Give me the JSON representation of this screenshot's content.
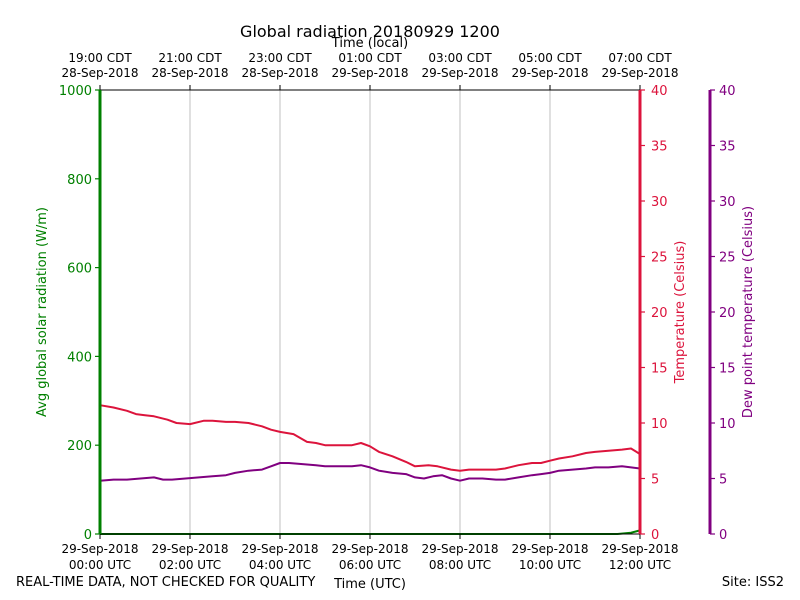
{
  "chart_data": {
    "type": "line",
    "title": "Global radiation 20180929 1200",
    "top_axis_label": "Time (local)",
    "xlabel": "Time (UTC)",
    "x_range_hours_utc": [
      0,
      12
    ],
    "x_ticks_utc": [
      {
        "hour": 0,
        "date": "29-Sep-2018",
        "time": "00:00 UTC"
      },
      {
        "hour": 2,
        "date": "29-Sep-2018",
        "time": "02:00 UTC"
      },
      {
        "hour": 4,
        "date": "29-Sep-2018",
        "time": "04:00 UTC"
      },
      {
        "hour": 6,
        "date": "29-Sep-2018",
        "time": "06:00 UTC"
      },
      {
        "hour": 8,
        "date": "29-Sep-2018",
        "time": "08:00 UTC"
      },
      {
        "hour": 10,
        "date": "29-Sep-2018",
        "time": "10:00 UTC"
      },
      {
        "hour": 12,
        "date": "29-Sep-2018",
        "time": "12:00 UTC"
      }
    ],
    "x_ticks_local": [
      {
        "hour": 0,
        "time": "19:00 CDT",
        "date": "28-Sep-2018"
      },
      {
        "hour": 2,
        "time": "21:00 CDT",
        "date": "28-Sep-2018"
      },
      {
        "hour": 4,
        "time": "23:00 CDT",
        "date": "28-Sep-2018"
      },
      {
        "hour": 6,
        "time": "01:00 CDT",
        "date": "29-Sep-2018"
      },
      {
        "hour": 8,
        "time": "03:00 CDT",
        "date": "29-Sep-2018"
      },
      {
        "hour": 10,
        "time": "05:00 CDT",
        "date": "29-Sep-2018"
      },
      {
        "hour": 12,
        "time": "07:00 CDT",
        "date": "29-Sep-2018"
      }
    ],
    "axes": {
      "radiation": {
        "label": "Avg global solar radiation (W/m)",
        "ylim": [
          0,
          1000
        ],
        "ticks": [
          0,
          200,
          400,
          600,
          800,
          1000
        ],
        "color": "#008000"
      },
      "temperature": {
        "label": "Temperature (Celsius)",
        "ylim": [
          0,
          40
        ],
        "ticks": [
          0,
          5,
          10,
          15,
          20,
          25,
          30,
          35,
          40
        ],
        "color": "#dc143c"
      },
      "dewpoint": {
        "label": "Dew point temperature (Celsius)",
        "ylim": [
          0,
          40
        ],
        "ticks": [
          0,
          5,
          10,
          15,
          20,
          25,
          30,
          35,
          40
        ],
        "color": "#800080"
      }
    },
    "grid": "vertical",
    "series": [
      {
        "axis": "radiation",
        "color": "#008000",
        "x": [
          0,
          11.5,
          11.8,
          12
        ],
        "y": [
          0,
          0,
          3,
          8
        ]
      },
      {
        "axis": "temperature",
        "color": "#dc143c",
        "x": [
          0,
          0.3,
          0.6,
          0.8,
          1.0,
          1.2,
          1.5,
          1.7,
          2.0,
          2.3,
          2.5,
          2.8,
          3.0,
          3.3,
          3.6,
          3.8,
          4.0,
          4.3,
          4.6,
          4.8,
          5.0,
          5.2,
          5.4,
          5.6,
          5.8,
          6.0,
          6.2,
          6.5,
          6.8,
          7.0,
          7.3,
          7.5,
          7.8,
          8.0,
          8.2,
          8.5,
          8.8,
          9.0,
          9.3,
          9.6,
          9.8,
          10.0,
          10.2,
          10.5,
          10.8,
          11.0,
          11.3,
          11.6,
          11.8,
          12.0
        ],
        "y": [
          11.6,
          11.4,
          11.1,
          10.8,
          10.7,
          10.6,
          10.3,
          10.0,
          9.9,
          10.2,
          10.2,
          10.1,
          10.1,
          10.0,
          9.7,
          9.4,
          9.2,
          9.0,
          8.3,
          8.2,
          8.0,
          8.0,
          8.0,
          8.0,
          8.2,
          7.9,
          7.4,
          7.0,
          6.5,
          6.1,
          6.2,
          6.1,
          5.8,
          5.7,
          5.8,
          5.8,
          5.8,
          5.9,
          6.2,
          6.4,
          6.4,
          6.6,
          6.8,
          7.0,
          7.3,
          7.4,
          7.5,
          7.6,
          7.7,
          7.2
        ]
      },
      {
        "axis": "dewpoint",
        "color": "#800080",
        "x": [
          0,
          0.3,
          0.6,
          0.9,
          1.2,
          1.4,
          1.6,
          1.9,
          2.2,
          2.5,
          2.8,
          3.0,
          3.3,
          3.6,
          3.8,
          4.0,
          4.2,
          4.5,
          4.8,
          5.0,
          5.3,
          5.6,
          5.8,
          6.0,
          6.2,
          6.5,
          6.8,
          7.0,
          7.2,
          7.4,
          7.6,
          7.8,
          8.0,
          8.2,
          8.5,
          8.8,
          9.0,
          9.3,
          9.6,
          9.8,
          10.0,
          10.2,
          10.5,
          10.8,
          11.0,
          11.3,
          11.6,
          11.8,
          12.0
        ],
        "y": [
          4.8,
          4.9,
          4.9,
          5.0,
          5.1,
          4.9,
          4.9,
          5.0,
          5.1,
          5.2,
          5.3,
          5.5,
          5.7,
          5.8,
          6.1,
          6.4,
          6.4,
          6.3,
          6.2,
          6.1,
          6.1,
          6.1,
          6.2,
          6.0,
          5.7,
          5.5,
          5.4,
          5.1,
          5.0,
          5.2,
          5.3,
          5.0,
          4.8,
          5.0,
          5.0,
          4.9,
          4.9,
          5.1,
          5.3,
          5.4,
          5.5,
          5.7,
          5.8,
          5.9,
          6.0,
          6.0,
          6.1,
          6.0,
          5.9
        ]
      }
    ]
  },
  "footer": {
    "left": "REAL-TIME DATA, NOT CHECKED FOR QUALITY",
    "right": "Site: ISS2"
  }
}
